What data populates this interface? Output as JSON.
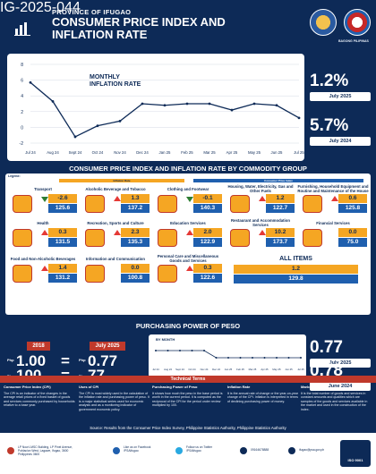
{
  "header": {
    "province": "PROVINCE OF IFUGAO",
    "title_line1": "CONSUMER PRICE INDEX AND",
    "title_line2": "INFLATION RATE",
    "doc_no": "IG-2025-044",
    "seal_right_label": "BAGONG PILIPINAS"
  },
  "inflation_chart": {
    "title": "MONTHLY\nINFLATION RATE",
    "title_l1": "MONTHLY",
    "title_l2": "INFLATION RATE",
    "ytick_labels": [
      "8",
      "6",
      "4",
      "2",
      "0",
      "-2"
    ],
    "chart_data": {
      "type": "line",
      "categories": [
        "Jul 24",
        "Aug 24",
        "Sept 24",
        "Oct 24",
        "Nov 24",
        "Dec 24",
        "Jan 25",
        "Feb 25",
        "Mar 25",
        "Apr 25",
        "May 25",
        "Jun 25",
        "Jul 25"
      ],
      "values": [
        5.7,
        3.3,
        -1.2,
        0.2,
        0.8,
        3.0,
        2.8,
        3.0,
        3.0,
        2.2,
        3.0,
        2.8,
        1.2
      ],
      "ylim": [
        -2,
        8
      ],
      "grid": true
    }
  },
  "kpis": [
    {
      "value": "1.2%",
      "label": "July 2025"
    },
    {
      "value": "5.7%",
      "label": "July 2024"
    }
  ],
  "commodity_section": {
    "title": "CONSUMER PRICE INDEX AND INFLATION RATE BY COMMODITY GROUP",
    "legend_label": "Legend:",
    "legend_inflation": "Inflation Rate",
    "legend_cpi": "Consumer Price Index",
    "groups": [
      {
        "name": "Transport",
        "inflation": "-2.6",
        "cpi": "125.6",
        "trend": "down",
        "icon": "car-icon"
      },
      {
        "name": "Alcoholic Beverage and Tobacco",
        "inflation": "1.3",
        "cpi": "137.2",
        "trend": "up",
        "icon": "bottle-icon"
      },
      {
        "name": "Clothing and Footwear",
        "inflation": "-0.1",
        "cpi": "140.3",
        "trend": "down",
        "icon": "shirt-icon"
      },
      {
        "name": "Housing, Water, Electricity, Gas and Other Fuels",
        "inflation": "1.2",
        "cpi": "122.7",
        "trend": "up",
        "icon": "house-icon"
      },
      {
        "name": "Furnishing, Household Equipment and Routine and Maintenance of the House",
        "inflation": "0.6",
        "cpi": "125.8",
        "trend": "up",
        "icon": "sofa-icon"
      },
      {
        "name": "Health",
        "inflation": "0.3",
        "cpi": "131.5",
        "trend": "up",
        "icon": "medkit-icon"
      },
      {
        "name": "Recreation, Sports and Culture",
        "inflation": "2.3",
        "cpi": "135.3",
        "trend": "up",
        "icon": "ball-icon"
      },
      {
        "name": "Education Services",
        "inflation": "2.0",
        "cpi": "122.9",
        "trend": "up",
        "icon": "cap-icon"
      },
      {
        "name": "Restaurant and Accommodation Services",
        "inflation": "10.2",
        "cpi": "173.7",
        "trend": "up",
        "icon": "dish-icon"
      },
      {
        "name": "Financial Services",
        "inflation": "0.0",
        "cpi": "75.0",
        "trend": "none",
        "icon": "bank-icon"
      },
      {
        "name": "Food and Non-Alcoholic Beverages",
        "inflation": "1.4",
        "cpi": "131.2",
        "trend": "up",
        "icon": "food-icon"
      },
      {
        "name": "Information and Communication",
        "inflation": "0.0",
        "cpi": "100.8",
        "trend": "none",
        "icon": "laptop-icon"
      },
      {
        "name": "Personal Care and Miscellaneous Goods and Services",
        "inflation": "0.3",
        "cpi": "122.6",
        "trend": "up",
        "icon": "care-icon"
      },
      {
        "name": "ALL ITEMS",
        "inflation": "1.2",
        "cpi": "129.8",
        "trend": "up",
        "icon": "basket-icon"
      }
    ]
  },
  "ppp": {
    "title": "PURCHASING POWER OF PESO",
    "year_left": "2018",
    "year_right": "July 2025",
    "php": "Php",
    "line1_left": "1.00",
    "line1_right": "0.77",
    "line2_left": "100",
    "line2_right": "77",
    "eq": "=",
    "chart_title": "BY MONTH",
    "chart_data": {
      "type": "line",
      "categories": [
        "Jul 24",
        "Aug 24",
        "Sept 24",
        "Oct 24",
        "Nov 24",
        "Dec 24",
        "Jan 25",
        "Feb 25",
        "Mar 25",
        "Apr 25",
        "May 25",
        "Jun 25",
        "Jul 25"
      ],
      "values": [
        0.78,
        0.78,
        0.78,
        0.78,
        0.78,
        0.77,
        0.77,
        0.77,
        0.77,
        0.77,
        0.77,
        0.77,
        0.77
      ]
    },
    "kpis": [
      {
        "value": "0.77",
        "label": "July 2025"
      },
      {
        "value": "0.78",
        "label": "June 2024"
      }
    ]
  },
  "technical": {
    "title": "Technical Terms",
    "terms": [
      {
        "head": "Consumer Price Index (CPI)",
        "body": "The CPI is an indicator of the changes in the average retail prices of a fixed basket of goods and services commonly purchased by households relative to a base year."
      },
      {
        "head": "Uses of CPI",
        "body": "The CPI is most widely used in the calculation of the inflation rate and purchasing power of peso. It is a major statistical series used for economic analysis and as a monitoring indicator of government economic policy."
      },
      {
        "head": "Purchasing Power of Peso",
        "body": "It shows how much the peso in the base period is worth in the current period. It is computed as the reciprocal of the CPI for the period under review multiplied by 100."
      },
      {
        "head": "Inflation Rate",
        "body": "It is the annual rate of change or the year-on-year change of the CPI. Inflation is interpreted in terms of declining purchasing power of money."
      },
      {
        "head": "Market Basket",
        "body": "It is the total number of goods and services in constant amounts and qualities which are samples of the goods and services available in the market and used in the construction of the index."
      }
    ]
  },
  "source": "Source: Results from the Consumer Price Index Survey, Philippine Statistics Authority, Philippine Statistics Authority",
  "footer": {
    "address": "LP Now LMSC Building, LP Pinel Avenue, Poblacion West, Lagawe, Ifugao, 3600 Philippines 3600",
    "facebook": "Like us on Facebook\n/PSAIfugao",
    "twitter": "Follow us on Twitter\n/PSAIfugao",
    "phone": "09164678888",
    "email": "ifugao@psa.gov.ph",
    "iso": "ISO 9001"
  }
}
